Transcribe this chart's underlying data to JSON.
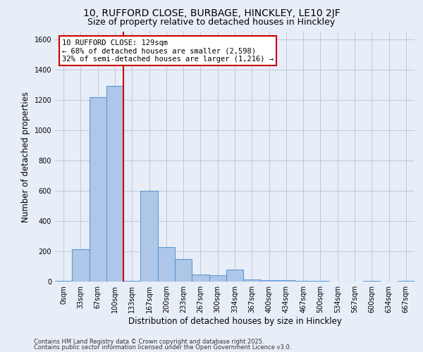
{
  "title_line1": "10, RUFFORD CLOSE, BURBAGE, HINCKLEY, LE10 2JF",
  "title_line2": "Size of property relative to detached houses in Hinckley",
  "xlabel": "Distribution of detached houses by size in Hinckley",
  "ylabel": "Number of detached properties",
  "footer_line1": "Contains HM Land Registry data © Crown copyright and database right 2025.",
  "footer_line2": "Contains public sector information licensed under the Open Government Licence v3.0.",
  "bar_labels": [
    "0sqm",
    "33sqm",
    "67sqm",
    "100sqm",
    "133sqm",
    "167sqm",
    "200sqm",
    "233sqm",
    "267sqm",
    "300sqm",
    "334sqm",
    "367sqm",
    "400sqm",
    "434sqm",
    "467sqm",
    "500sqm",
    "534sqm",
    "567sqm",
    "600sqm",
    "634sqm",
    "667sqm"
  ],
  "bar_values": [
    5,
    215,
    1220,
    1290,
    5,
    600,
    230,
    150,
    45,
    40,
    80,
    15,
    10,
    10,
    5,
    5,
    0,
    0,
    5,
    0,
    5
  ],
  "bar_color": "#aec6e8",
  "bar_edge_color": "#5b9bd5",
  "vline_color": "#cc0000",
  "annotation_text": "10 RUFFORD CLOSE: 129sqm\n← 68% of detached houses are smaller (2,598)\n32% of semi-detached houses are larger (1,216) →",
  "annotation_box_color": "#ffffff",
  "annotation_box_edge_color": "#cc0000",
  "ylim": [
    0,
    1650
  ],
  "yticks": [
    0,
    200,
    400,
    600,
    800,
    1000,
    1200,
    1400,
    1600
  ],
  "grid_color": "#c0c8d8",
  "bg_color": "#e8eef8",
  "plot_bg_color": "#e8eef8",
  "title_fontsize": 10,
  "subtitle_fontsize": 9,
  "axis_label_fontsize": 8.5,
  "tick_fontsize": 7,
  "annotation_fontsize": 7.5,
  "footer_fontsize": 6
}
